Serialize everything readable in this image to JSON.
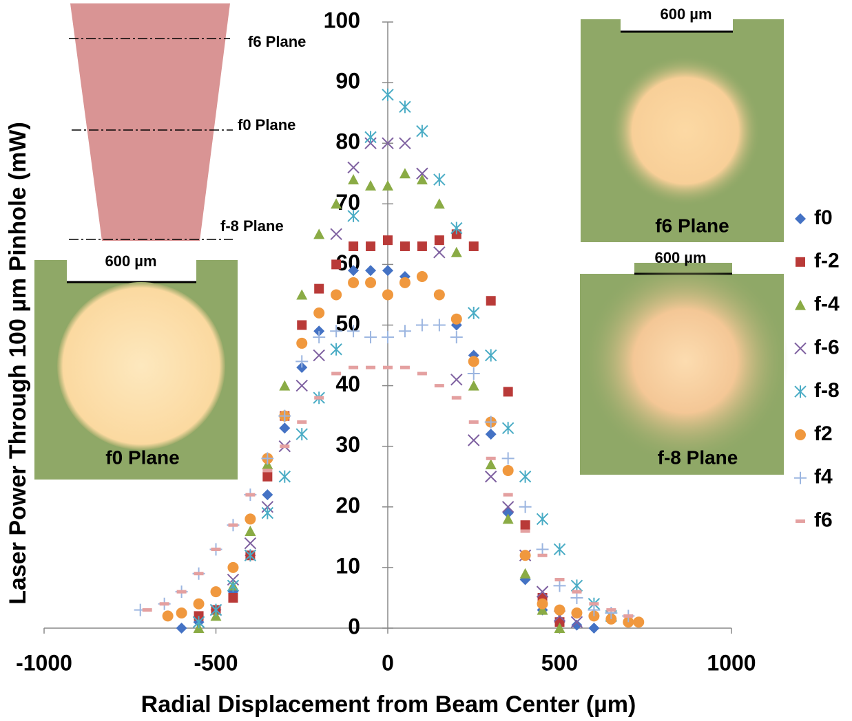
{
  "chart_data": {
    "type": "scatter",
    "x_label": "Radial Displacement from Beam Center (µm)",
    "y_label": "Laser Power Through 100 µm Pinhole (mW)",
    "xlim": [
      -1000,
      1000
    ],
    "xticks": [
      -1000,
      -500,
      0,
      500,
      1000
    ],
    "ylim": [
      0,
      100
    ],
    "yticks": [
      0,
      10,
      20,
      30,
      40,
      50,
      60,
      70,
      80,
      90,
      100
    ],
    "annotations": [
      "f6 Plane",
      "f0 Plane",
      "f-8 Plane",
      "600 µm",
      "f0 Plane",
      "600 µm",
      "f6 Plane",
      "600 µm",
      "f-8 Plane"
    ],
    "series": [
      {
        "name": "f0",
        "color": "#4472c4",
        "marker": "diamond",
        "x": [
          -600,
          -550,
          -500,
          -450,
          -400,
          -350,
          -300,
          -250,
          -200,
          -150,
          -100,
          -50,
          0,
          50,
          100,
          150,
          200,
          250,
          300,
          350,
          400,
          450,
          500,
          550,
          600
        ],
        "values": [
          0,
          1,
          3,
          6,
          12,
          22,
          33,
          43,
          49,
          55,
          59,
          59,
          59,
          58,
          58,
          55,
          50,
          45,
          32,
          19,
          8,
          3,
          1,
          0.5,
          0
        ]
      },
      {
        "name": "f-2",
        "color": "#b93a38",
        "marker": "square",
        "x": [
          -550,
          -500,
          -450,
          -400,
          -350,
          -300,
          -250,
          -200,
          -150,
          -100,
          -50,
          0,
          50,
          100,
          150,
          200,
          250,
          300,
          350,
          400,
          450,
          500
        ],
        "values": [
          2,
          3,
          5,
          12,
          25,
          35,
          50,
          56,
          60,
          63,
          63,
          64,
          63,
          63,
          64,
          65,
          63,
          54,
          39,
          17,
          5,
          1
        ]
      },
      {
        "name": "f-4",
        "color": "#8aab45",
        "marker": "triangle",
        "x": [
          -550,
          -500,
          -450,
          -400,
          -350,
          -300,
          -250,
          -200,
          -150,
          -100,
          -50,
          0,
          50,
          100,
          150,
          200,
          250,
          300,
          350,
          400,
          450,
          500
        ],
        "values": [
          0,
          2,
          7,
          16,
          27,
          40,
          55,
          65,
          70,
          74,
          73,
          73,
          75,
          74,
          70,
          62,
          40,
          27,
          18,
          9,
          3,
          0
        ]
      },
      {
        "name": "f-6",
        "color": "#7e60a0",
        "marker": "x",
        "x": [
          -550,
          -500,
          -450,
          -400,
          -350,
          -300,
          -250,
          -200,
          -150,
          -100,
          -50,
          0,
          50,
          100,
          150,
          200,
          250,
          300,
          350,
          400,
          450,
          500,
          550
        ],
        "values": [
          1,
          3,
          8,
          14,
          20,
          30,
          40,
          45,
          65,
          76,
          80,
          80,
          80,
          75,
          62,
          41,
          31,
          25,
          20,
          12,
          6,
          2,
          1
        ]
      },
      {
        "name": "f-8",
        "color": "#4aacc5",
        "marker": "star",
        "x": [
          -550,
          -500,
          -450,
          -400,
          -350,
          -300,
          -250,
          -200,
          -150,
          -100,
          -50,
          0,
          50,
          100,
          150,
          200,
          250,
          300,
          350,
          400,
          450,
          500,
          550,
          600,
          650
        ],
        "values": [
          1,
          3,
          7,
          12,
          19,
          25,
          32,
          38,
          46,
          68,
          81,
          88,
          86,
          82,
          74,
          66,
          52,
          45,
          33,
          25,
          18,
          13,
          7,
          4,
          2
        ]
      },
      {
        "name": "f2",
        "color": "#f0983e",
        "marker": "circle",
        "x": [
          -640,
          -600,
          -550,
          -500,
          -450,
          -400,
          -350,
          -300,
          -250,
          -200,
          -150,
          -100,
          -50,
          0,
          50,
          100,
          150,
          200,
          250,
          300,
          350,
          400,
          450,
          500,
          550,
          600,
          650,
          700,
          730
        ],
        "values": [
          2,
          2.5,
          4,
          6,
          10,
          18,
          28,
          35,
          47,
          52,
          55,
          57,
          57,
          55,
          57,
          58,
          55,
          51,
          44,
          34,
          26,
          12,
          4,
          3,
          2.5,
          2,
          1.5,
          1,
          1
        ]
      },
      {
        "name": "f4",
        "color": "#9bb5e0",
        "marker": "plus",
        "x": [
          -720,
          -650,
          -600,
          -550,
          -500,
          -450,
          -400,
          -350,
          -300,
          -250,
          -200,
          -150,
          -100,
          -50,
          0,
          50,
          100,
          150,
          200,
          250,
          300,
          350,
          400,
          450,
          500,
          550,
          600,
          650,
          700
        ],
        "values": [
          3,
          4,
          6,
          9,
          13,
          17,
          22,
          28,
          35,
          44,
          48,
          49,
          49,
          48,
          48,
          49,
          50,
          50,
          48,
          42,
          34,
          28,
          20,
          13,
          7,
          5,
          3,
          2.5,
          2
        ]
      },
      {
        "name": "f6",
        "color": "#e4a0a0",
        "marker": "dash",
        "x": [
          -700,
          -650,
          -600,
          -550,
          -500,
          -450,
          -400,
          -350,
          -300,
          -250,
          -200,
          -150,
          -100,
          -50,
          0,
          50,
          100,
          150,
          200,
          250,
          300,
          350,
          400,
          450,
          500,
          550,
          600,
          650,
          700
        ],
        "values": [
          3,
          4,
          6,
          9,
          13,
          17,
          22,
          26,
          30,
          34,
          38,
          42,
          43,
          43,
          43,
          43,
          42,
          40,
          38,
          34,
          28,
          22,
          16,
          12,
          8,
          6,
          4,
          3,
          2
        ]
      }
    ]
  }
}
